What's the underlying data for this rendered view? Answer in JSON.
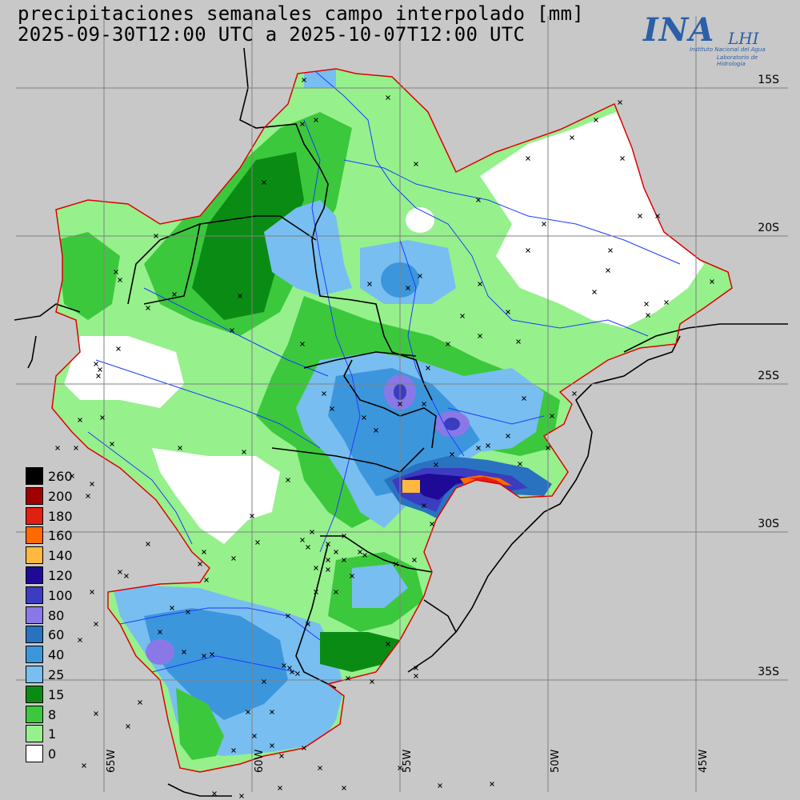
{
  "title": {
    "line1": "precipitaciones semanales campo interpolado [mm]",
    "line2": "2025-09-30T12:00 UTC a 2025-10-07T12:00 UTC"
  },
  "logo": {
    "main": "INA",
    "secondary": "LHI",
    "subtitle1": "Instituto Nacional del Agua",
    "subtitle2": "Laboratorio de Hidrología"
  },
  "lat_labels": [
    "15S",
    "20S",
    "25S",
    "30S",
    "35S"
  ],
  "lon_labels": [
    "65W",
    "60W",
    "55W",
    "50W",
    "45W"
  ],
  "legend": [
    {
      "label": "260",
      "color": "#000000"
    },
    {
      "label": "200",
      "color": "#a00000"
    },
    {
      "label": "180",
      "color": "#e02010"
    },
    {
      "label": "160",
      "color": "#ff6a00"
    },
    {
      "label": "140",
      "color": "#ffb840"
    },
    {
      "label": "120",
      "color": "#1e0a96"
    },
    {
      "label": "100",
      "color": "#3c3cc0"
    },
    {
      "label": "80",
      "color": "#8a78e6"
    },
    {
      "label": "60",
      "color": "#2872c0"
    },
    {
      "label": "40",
      "color": "#3c96dc"
    },
    {
      "label": "25",
      "color": "#78bef0"
    },
    {
      "label": "15",
      "color": "#0a8c14"
    },
    {
      "label": "8",
      "color": "#3cc83c"
    },
    {
      "label": "1",
      "color": "#96f08c"
    },
    {
      "label": "0",
      "color": "#ffffff"
    }
  ],
  "colors": {
    "background": "#c8c8c8",
    "basin_outline": "#e00000",
    "rivers": "#1f3cff",
    "borders": "#000000",
    "grid": "#808080"
  }
}
